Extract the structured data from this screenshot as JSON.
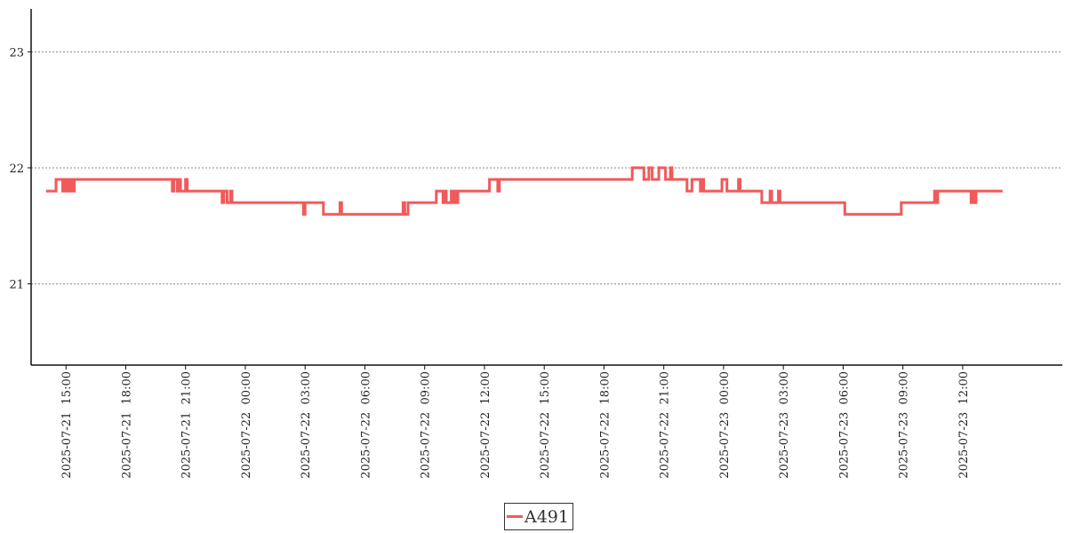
{
  "chart_data": {
    "type": "line",
    "title": "",
    "xlabel": "",
    "ylabel": "",
    "ylim": [
      20.3,
      23.37
    ],
    "xlim": [
      "2025-07-21 13:15",
      "2025-07-23 17:00"
    ],
    "grid": {
      "y": true,
      "x": false,
      "style": "dotted"
    },
    "legend_position": "bottom-center",
    "y_ticks": [
      {
        "value": 21,
        "label": "21"
      },
      {
        "value": 22,
        "label": "22"
      },
      {
        "value": 23,
        "label": "23"
      }
    ],
    "x_ticks": [
      {
        "x": "2025-07-21 15:00",
        "label": "2025-07-21  15:00"
      },
      {
        "x": "2025-07-21 18:00",
        "label": "2025-07-21  18:00"
      },
      {
        "x": "2025-07-21 21:00",
        "label": "2025-07-21  21:00"
      },
      {
        "x": "2025-07-22 00:00",
        "label": "2025-07-22  00:00"
      },
      {
        "x": "2025-07-22 03:00",
        "label": "2025-07-22  03:00"
      },
      {
        "x": "2025-07-22 06:00",
        "label": "2025-07-22  06:00"
      },
      {
        "x": "2025-07-22 09:00",
        "label": "2025-07-22  09:00"
      },
      {
        "x": "2025-07-22 12:00",
        "label": "2025-07-22  12:00"
      },
      {
        "x": "2025-07-22 15:00",
        "label": "2025-07-22  15:00"
      },
      {
        "x": "2025-07-22 18:00",
        "label": "2025-07-22  18:00"
      },
      {
        "x": "2025-07-22 21:00",
        "label": "2025-07-22  21:00"
      },
      {
        "x": "2025-07-23 00:00",
        "label": "2025-07-23  00:00"
      },
      {
        "x": "2025-07-23 03:00",
        "label": "2025-07-23  03:00"
      },
      {
        "x": "2025-07-23 06:00",
        "label": "2025-07-23  06:00"
      },
      {
        "x": "2025-07-23 09:00",
        "label": "2025-07-23  09:00"
      },
      {
        "x": "2025-07-23 12:00",
        "label": "2025-07-23  12:00"
      }
    ],
    "series": [
      {
        "name": "A491",
        "color": "#f05a5a",
        "step": true,
        "points": [
          [
            "2025-07-21 14:00",
            21.8
          ],
          [
            "2025-07-21 14:30",
            21.9
          ],
          [
            "2025-07-21 14:50",
            21.8
          ],
          [
            "2025-07-21 14:55",
            21.9
          ],
          [
            "2025-07-21 15:00",
            21.8
          ],
          [
            "2025-07-21 15:05",
            21.9
          ],
          [
            "2025-07-21 15:10",
            21.8
          ],
          [
            "2025-07-21 15:15",
            21.9
          ],
          [
            "2025-07-21 15:20",
            21.8
          ],
          [
            "2025-07-21 15:25",
            21.9
          ],
          [
            "2025-07-21 20:20",
            21.8
          ],
          [
            "2025-07-21 20:25",
            21.9
          ],
          [
            "2025-07-21 20:35",
            21.8
          ],
          [
            "2025-07-21 20:40",
            21.9
          ],
          [
            "2025-07-21 20:45",
            21.8
          ],
          [
            "2025-07-21 21:00",
            21.9
          ],
          [
            "2025-07-21 21:05",
            21.8
          ],
          [
            "2025-07-21 22:50",
            21.7
          ],
          [
            "2025-07-21 22:55",
            21.8
          ],
          [
            "2025-07-21 23:05",
            21.7
          ],
          [
            "2025-07-21 23:15",
            21.8
          ],
          [
            "2025-07-21 23:20",
            21.7
          ],
          [
            "2025-07-22 02:55",
            21.6
          ],
          [
            "2025-07-22 03:00",
            21.7
          ],
          [
            "2025-07-22 03:55",
            21.6
          ],
          [
            "2025-07-22 04:45",
            21.7
          ],
          [
            "2025-07-22 04:50",
            21.6
          ],
          [
            "2025-07-22 07:55",
            21.7
          ],
          [
            "2025-07-22 08:00",
            21.6
          ],
          [
            "2025-07-22 08:10",
            21.7
          ],
          [
            "2025-07-22 09:35",
            21.8
          ],
          [
            "2025-07-22 09:55",
            21.7
          ],
          [
            "2025-07-22 10:00",
            21.8
          ],
          [
            "2025-07-22 10:05",
            21.7
          ],
          [
            "2025-07-22 10:20",
            21.8
          ],
          [
            "2025-07-22 10:25",
            21.7
          ],
          [
            "2025-07-22 10:30",
            21.8
          ],
          [
            "2025-07-22 10:35",
            21.7
          ],
          [
            "2025-07-22 10:40",
            21.8
          ],
          [
            "2025-07-22 12:15",
            21.9
          ],
          [
            "2025-07-22 12:40",
            21.8
          ],
          [
            "2025-07-22 12:45",
            21.9
          ],
          [
            "2025-07-22 19:25",
            22.0
          ],
          [
            "2025-07-22 20:00",
            21.9
          ],
          [
            "2025-07-22 20:15",
            22.0
          ],
          [
            "2025-07-22 20:25",
            21.9
          ],
          [
            "2025-07-22 20:45",
            22.0
          ],
          [
            "2025-07-22 21:05",
            21.9
          ],
          [
            "2025-07-22 21:20",
            22.0
          ],
          [
            "2025-07-22 21:25",
            21.9
          ],
          [
            "2025-07-22 22:10",
            21.8
          ],
          [
            "2025-07-22 22:25",
            21.9
          ],
          [
            "2025-07-22 22:50",
            21.8
          ],
          [
            "2025-07-22 22:55",
            21.9
          ],
          [
            "2025-07-22 23:00",
            21.8
          ],
          [
            "2025-07-22 23:55",
            21.9
          ],
          [
            "2025-07-23 00:10",
            21.8
          ],
          [
            "2025-07-23 00:45",
            21.9
          ],
          [
            "2025-07-23 00:50",
            21.8
          ],
          [
            "2025-07-23 01:55",
            21.7
          ],
          [
            "2025-07-23 02:20",
            21.8
          ],
          [
            "2025-07-23 02:25",
            21.7
          ],
          [
            "2025-07-23 02:45",
            21.8
          ],
          [
            "2025-07-23 02:50",
            21.7
          ],
          [
            "2025-07-23 06:05",
            21.6
          ],
          [
            "2025-07-23 08:55",
            21.7
          ],
          [
            "2025-07-23 10:35",
            21.8
          ],
          [
            "2025-07-23 10:40",
            21.7
          ],
          [
            "2025-07-23 10:45",
            21.8
          ],
          [
            "2025-07-23 12:25",
            21.7
          ],
          [
            "2025-07-23 12:30",
            21.8
          ],
          [
            "2025-07-23 12:35",
            21.7
          ],
          [
            "2025-07-23 12:40",
            21.8
          ],
          [
            "2025-07-23 14:00",
            21.8
          ]
        ]
      }
    ]
  },
  "legend": {
    "items": [
      {
        "label": "A491",
        "color": "#f05a5a"
      }
    ]
  }
}
